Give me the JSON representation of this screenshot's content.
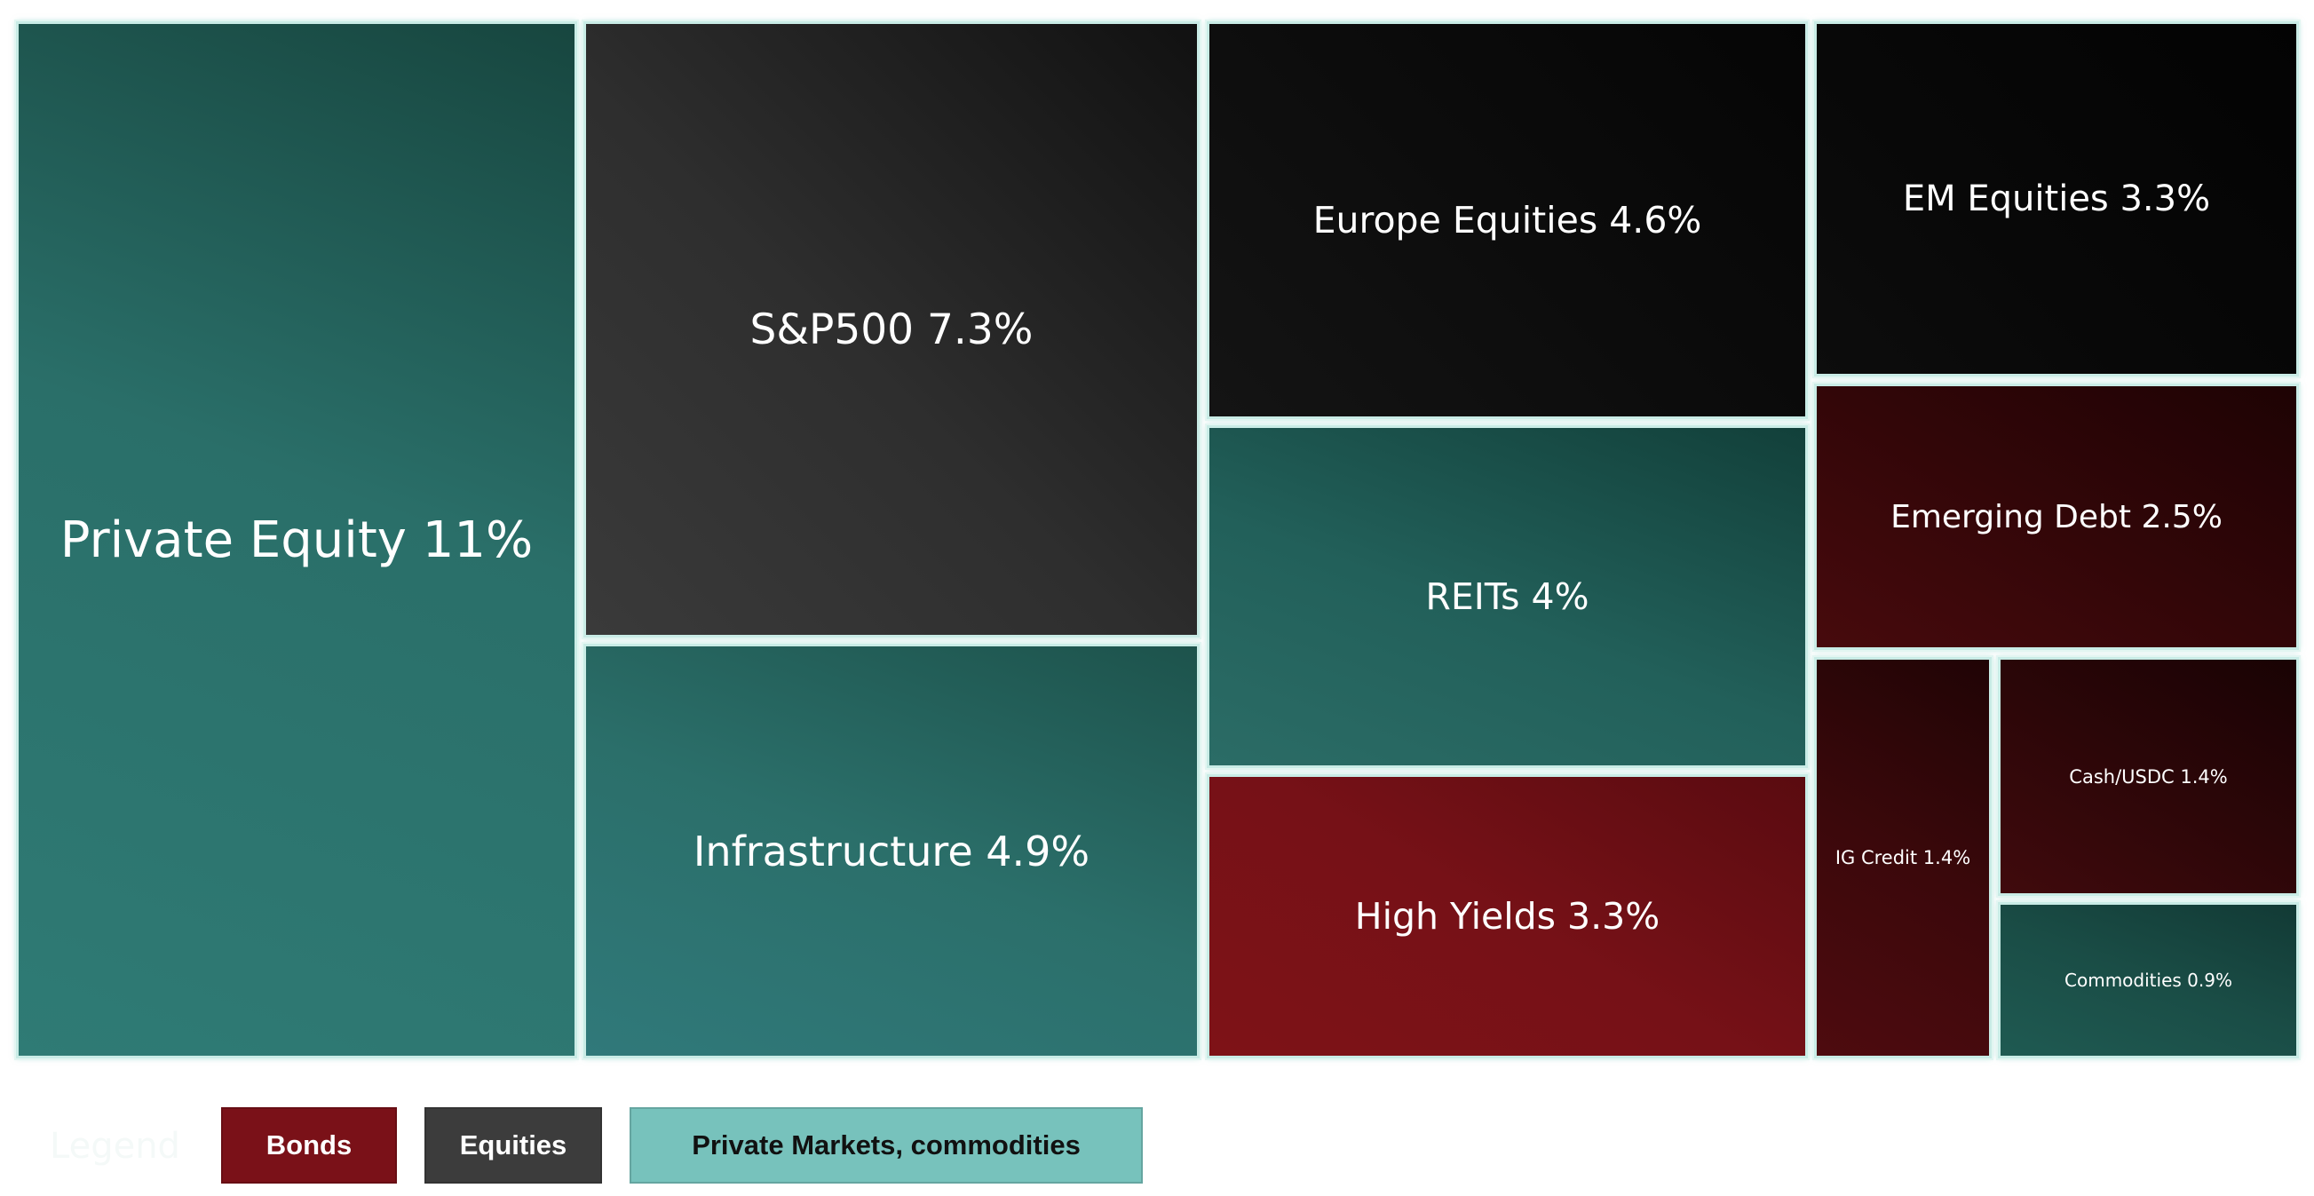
{
  "chart_data": {
    "type": "treemap",
    "unit": "%",
    "items": [
      {
        "label": "Private Equity 11%",
        "name": "Private Equity",
        "value": 11,
        "group": "Private Markets, commodities"
      },
      {
        "label": "S&P500 7.3%",
        "name": "S&P500",
        "value": 7.3,
        "group": "Equities"
      },
      {
        "label": "Infrastructure 4.9%",
        "name": "Infrastructure",
        "value": 4.9,
        "group": "Private Markets, commodities"
      },
      {
        "label": "Europe Equities 4.6%",
        "name": "Europe Equities",
        "value": 4.6,
        "group": "Equities"
      },
      {
        "label": "REITs 4%",
        "name": "REITs",
        "value": 4,
        "group": "Private Markets, commodities"
      },
      {
        "label": "High Yields 3.3%",
        "name": "High Yields",
        "value": 3.3,
        "group": "Bonds"
      },
      {
        "label": "EM Equities 3.3%",
        "name": "EM Equities",
        "value": 3.3,
        "group": "Equities"
      },
      {
        "label": "Emerging Debt 2.5%",
        "name": "Emerging Debt",
        "value": 2.5,
        "group": "Bonds"
      },
      {
        "label": "IG Credit 1.4%",
        "name": "IG Credit",
        "value": 1.4,
        "group": "Bonds"
      },
      {
        "label": "Cash/USDC 1.4%",
        "name": "Cash/USDC",
        "value": 1.4,
        "group": "Bonds"
      },
      {
        "label": "Commodities 0.9%",
        "name": "Commodities",
        "value": 0.9,
        "group": "Private Markets, commodities"
      }
    ],
    "legend": {
      "title": "Legend",
      "entries": [
        {
          "label": "Bonds",
          "color": "#7a1118",
          "text_color": "#ffffff"
        },
        {
          "label": "Equities",
          "color": "#3c3c3c",
          "text_color": "#ffffff"
        },
        {
          "label": "Private Markets, commodities",
          "color": "#77c2bc",
          "text_color": "#111111"
        }
      ]
    },
    "colors": {
      "Bonds": "#7a1118",
      "Equities": "#2e2e2e",
      "Private Markets, commodities": "#2f7a74",
      "tile_border": "#c9ece6"
    }
  }
}
